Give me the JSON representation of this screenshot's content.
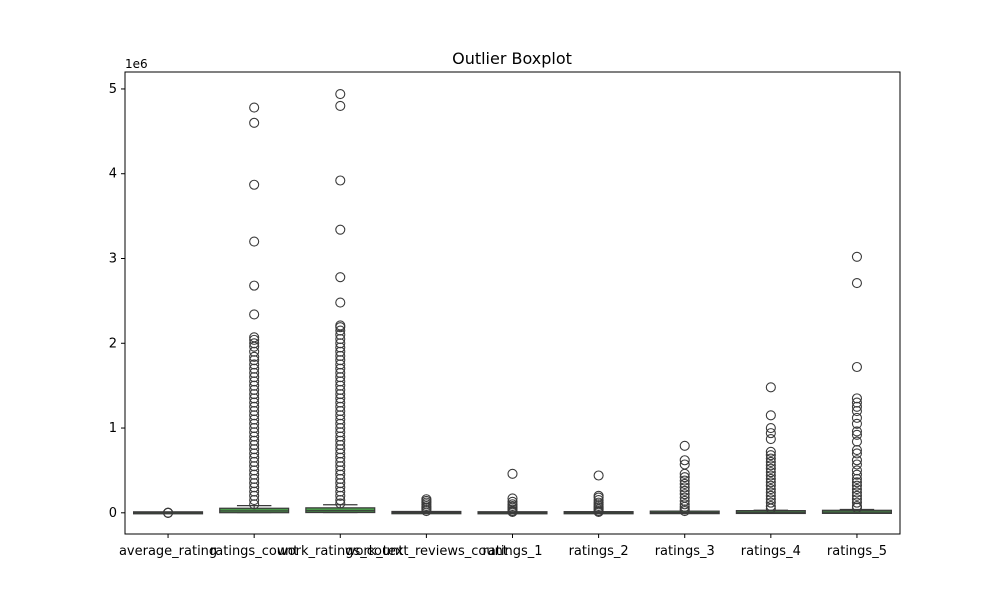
{
  "chart_data": {
    "type": "boxplot",
    "title": "Outlier Boxplot",
    "xlabel": "",
    "ylabel": "",
    "y_offset_label": "1e6",
    "ylim": [
      -0.25,
      5.2
    ],
    "y_ticks": [
      0,
      1,
      2,
      3,
      4,
      5
    ],
    "y_tick_labels": [
      "0",
      "1",
      "2",
      "3",
      "4",
      "5"
    ],
    "grid": false,
    "legend": "none",
    "box_color": "#4a9a4a",
    "line_color": "#3a3a3a",
    "categories": [
      "average_rating",
      "ratings_count",
      "work_ratings_count",
      "work_text_reviews_count",
      "ratings_1",
      "ratings_2",
      "ratings_3",
      "ratings_4",
      "ratings_5"
    ],
    "series": [
      {
        "category": "average_rating",
        "q1": 0,
        "median": 0,
        "q3": 0,
        "whisker_low": 0,
        "whisker_high": 0,
        "outliers": [
          0.0,
          0.0,
          0.0
        ]
      },
      {
        "category": "ratings_count",
        "q1": 0.013,
        "median": 0.022,
        "q3": 0.042,
        "whisker_low": 0.003,
        "whisker_high": 0.085,
        "outliers": [
          4.78,
          4.6,
          3.87,
          3.2,
          2.68,
          2.34,
          2.07,
          2.04,
          2.0,
          1.96,
          1.9,
          1.84,
          1.8,
          1.75,
          1.7,
          1.65,
          1.6,
          1.55,
          1.5,
          1.45,
          1.4,
          1.35,
          1.3,
          1.25,
          1.2,
          1.15,
          1.1,
          1.05,
          1.0,
          0.95,
          0.9,
          0.85,
          0.8,
          0.75,
          0.7,
          0.65,
          0.6,
          0.55,
          0.5,
          0.45,
          0.4,
          0.35,
          0.3,
          0.25,
          0.2,
          0.15,
          0.1
        ]
      },
      {
        "category": "work_ratings_count",
        "q1": 0.015,
        "median": 0.024,
        "q3": 0.047,
        "whisker_low": 0.004,
        "whisker_high": 0.095,
        "outliers": [
          4.94,
          4.8,
          3.92,
          3.34,
          2.78,
          2.48,
          2.21,
          2.19,
          2.15,
          2.1,
          2.05,
          2.0,
          1.95,
          1.9,
          1.85,
          1.8,
          1.75,
          1.7,
          1.65,
          1.6,
          1.55,
          1.5,
          1.45,
          1.4,
          1.35,
          1.3,
          1.25,
          1.2,
          1.15,
          1.1,
          1.05,
          1.0,
          0.95,
          0.9,
          0.85,
          0.8,
          0.75,
          0.7,
          0.65,
          0.6,
          0.55,
          0.5,
          0.45,
          0.4,
          0.35,
          0.3,
          0.25,
          0.2,
          0.15,
          0.11
        ]
      },
      {
        "category": "work_text_reviews_count",
        "q1": 0.001,
        "median": 0.002,
        "q3": 0.004,
        "whisker_low": 0.0,
        "whisker_high": 0.009,
        "outliers": [
          0.16,
          0.14,
          0.12,
          0.1,
          0.08,
          0.06,
          0.04,
          0.02
        ]
      },
      {
        "category": "ratings_1",
        "q1": 0.0,
        "median": 0.0005,
        "q3": 0.001,
        "whisker_low": 0.0,
        "whisker_high": 0.003,
        "outliers": [
          0.46,
          0.17,
          0.13,
          0.1,
          0.08,
          0.06,
          0.04,
          0.02,
          0.01
        ]
      },
      {
        "category": "ratings_2",
        "q1": 0.0005,
        "median": 0.001,
        "q3": 0.002,
        "whisker_low": 0.0,
        "whisker_high": 0.005,
        "outliers": [
          0.44,
          0.2,
          0.18,
          0.15,
          0.12,
          0.1,
          0.08,
          0.06,
          0.04,
          0.02,
          0.01
        ]
      },
      {
        "category": "ratings_3",
        "q1": 0.002,
        "median": 0.004,
        "q3": 0.008,
        "whisker_low": 0.0,
        "whisker_high": 0.018,
        "outliers": [
          0.79,
          0.62,
          0.57,
          0.46,
          0.42,
          0.38,
          0.34,
          0.3,
          0.26,
          0.22,
          0.18,
          0.14,
          0.1,
          0.07,
          0.04,
          0.02
        ]
      },
      {
        "category": "ratings_4",
        "q1": 0.004,
        "median": 0.007,
        "q3": 0.014,
        "whisker_low": 0.0,
        "whisker_high": 0.03,
        "outliers": [
          1.48,
          1.15,
          1.0,
          0.94,
          0.87,
          0.72,
          0.68,
          0.64,
          0.6,
          0.56,
          0.52,
          0.48,
          0.44,
          0.4,
          0.36,
          0.32,
          0.28,
          0.24,
          0.2,
          0.16,
          0.12,
          0.08,
          0.05
        ]
      },
      {
        "category": "ratings_5",
        "q1": 0.005,
        "median": 0.009,
        "q3": 0.018,
        "whisker_low": 0.0,
        "whisker_high": 0.04,
        "outliers": [
          3.02,
          2.71,
          1.72,
          1.35,
          1.3,
          1.25,
          1.2,
          1.12,
          1.05,
          0.96,
          0.92,
          0.84,
          0.74,
          0.7,
          0.62,
          0.57,
          0.5,
          0.45,
          0.4,
          0.36,
          0.32,
          0.28,
          0.24,
          0.2,
          0.16,
          0.12,
          0.08,
          0.06
        ]
      }
    ]
  }
}
